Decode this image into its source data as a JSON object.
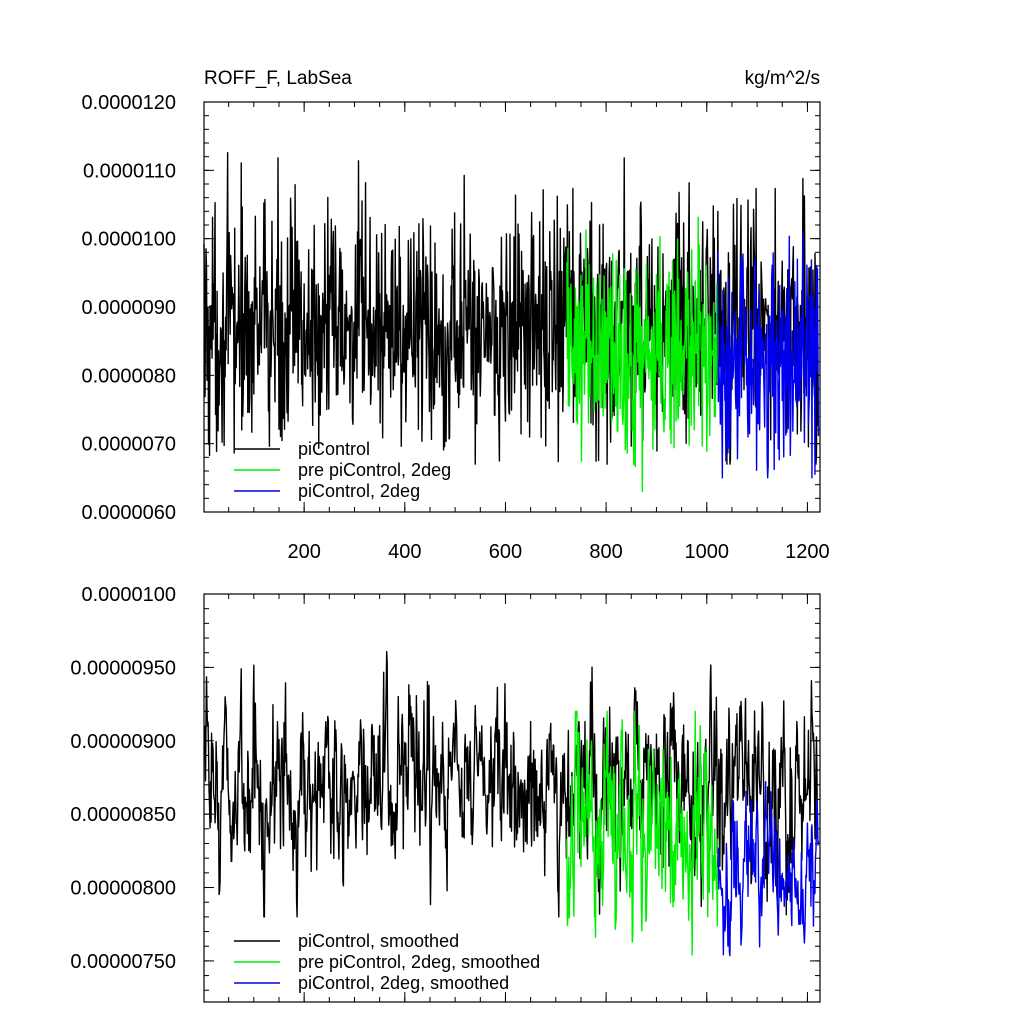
{
  "colors": {
    "piControl": "#000000",
    "pre_piControl_2deg": "#00ee00",
    "piControl_2deg": "#0000ee"
  },
  "chart_data": [
    {
      "type": "line",
      "title_left": "ROFF_F, LabSea",
      "title_right": "kg/m^2/s",
      "xlim": [
        1,
        1225
      ],
      "ylim": [
        6e-06,
        1.2e-05
      ],
      "x_ticks": [
        200,
        400,
        600,
        800,
        1000,
        1200
      ],
      "x_tick_labels": [
        "200",
        "400",
        "600",
        "800",
        "1000",
        "1200"
      ],
      "y_ticks": [
        6e-06,
        7e-06,
        8e-06,
        9e-06,
        1e-05,
        1.1e-05,
        1.2e-05
      ],
      "y_tick_labels": [
        "0.0000060",
        "0.0000070",
        "0.0000080",
        "0.0000090",
        "0.0000100",
        "0.0000110",
        "0.0000120"
      ],
      "legend_position": "bottom-left",
      "series": [
        {
          "name": "piControl",
          "color": "#000000",
          "x_start": 1,
          "x_end": 1220,
          "approx": {
            "mean": 8.7e-06,
            "amplitude": 9e-07,
            "min": 6.7e-06,
            "max": 1.16e-05
          }
        },
        {
          "name": "pre piControl, 2deg",
          "color": "#00ee00",
          "x_start": 722,
          "x_end": 1022,
          "approx": {
            "mean": 8.3e-06,
            "amplitude": 8e-07,
            "min": 6.3e-06,
            "max": 1.08e-05
          }
        },
        {
          "name": "piControl, 2deg",
          "color": "#0000ee",
          "x_start": 1022,
          "x_end": 1222,
          "approx": {
            "mean": 8.2e-06,
            "amplitude": 8e-07,
            "min": 6.5e-06,
            "max": 1.08e-05
          }
        }
      ]
    },
    {
      "type": "line",
      "xlim": [
        1,
        1225
      ],
      "ylim": [
        7.22e-06,
        1e-05
      ],
      "x_ticks": [
        200,
        400,
        600,
        800,
        1000,
        1200
      ],
      "y_ticks": [
        7.5e-06,
        8e-06,
        8.5e-06,
        9e-06,
        9.5e-06,
        1e-05
      ],
      "y_tick_labels": [
        "0.00000750",
        "0.00000800",
        "0.00000850",
        "0.00000900",
        "0.00000950",
        "0.0000100"
      ],
      "legend_position": "bottom-left",
      "series": [
        {
          "name": "piControl, smoothed",
          "color": "#000000",
          "x_start": 1,
          "x_end": 1220,
          "approx": {
            "mean": 8.7e-06,
            "amplitude": 3e-07,
            "min": 7.8e-06,
            "max": 9.9e-06
          }
        },
        {
          "name": "pre piControl, 2deg, smoothed",
          "color": "#00ee00",
          "x_start": 722,
          "x_end": 1022,
          "approx": {
            "mean": 8.4e-06,
            "amplitude": 3.5e-07,
            "min": 7.3e-06,
            "max": 9.2e-06
          }
        },
        {
          "name": "piControl, 2deg, smoothed",
          "color": "#0000ee",
          "x_start": 1022,
          "x_end": 1222,
          "approx": {
            "mean": 8.1e-06,
            "amplitude": 2.5e-07,
            "min": 7.3e-06,
            "max": 9e-06
          }
        }
      ]
    }
  ]
}
